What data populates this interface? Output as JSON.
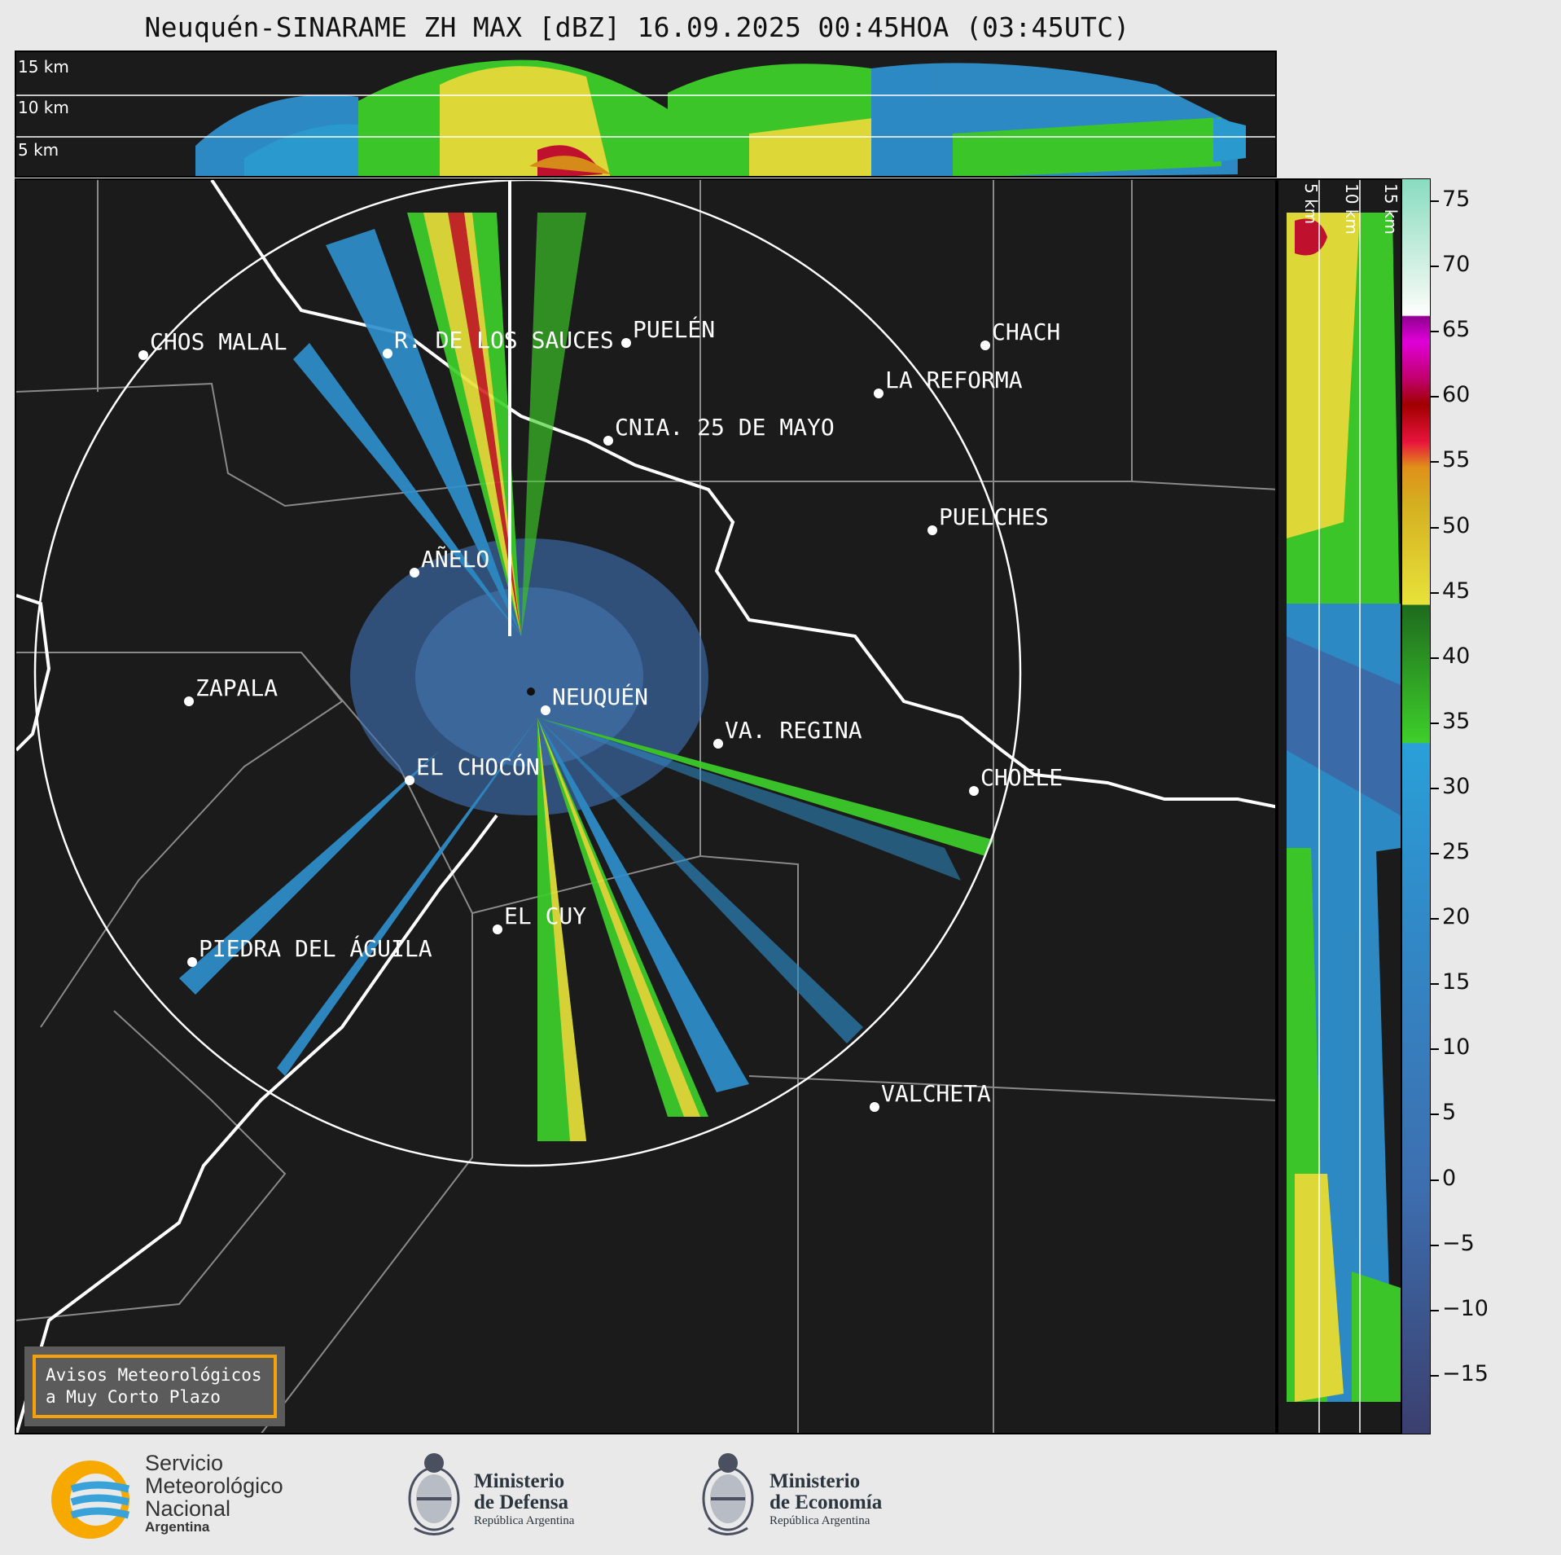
{
  "title": "Neuquén-SINARAME ZH MAX [dBZ] 16.09.2025 00:45HOA (03:45UTC)",
  "top_panel": {
    "altitude_labels": [
      "15 km",
      "10 km",
      "5 km"
    ]
  },
  "side_panel": {
    "altitude_labels": [
      "5 km",
      "10 km",
      "15 km"
    ]
  },
  "map": {
    "towns": [
      {
        "name": "CHOS MALAL"
      },
      {
        "name": "R. DE LOS SAUCES"
      },
      {
        "name": "PUELÉN"
      },
      {
        "name": "CHACH"
      },
      {
        "name": "LA REFORMA"
      },
      {
        "name": "CNIA. 25 DE MAYO"
      },
      {
        "name": "PUELCHES"
      },
      {
        "name": "AÑELO"
      },
      {
        "name": "ZAPALA"
      },
      {
        "name": "NEUQUÉN"
      },
      {
        "name": "VA. REGINA"
      },
      {
        "name": "EL CHOCÓN"
      },
      {
        "name": "CHOELE"
      },
      {
        "name": "EL CUY"
      },
      {
        "name": "PIEDRA DEL ÁGUILA"
      },
      {
        "name": "VALCHETA"
      }
    ],
    "warning_line1": "Avisos Meteorológicos",
    "warning_line2": "a Muy Corto Plazo"
  },
  "colorbar": {
    "unit": "dBZ",
    "ticks": [
      "75",
      "70",
      "65",
      "60",
      "55",
      "50",
      "45",
      "40",
      "35",
      "30",
      "25",
      "20",
      "15",
      "10",
      "5",
      "0",
      "−5",
      "−10",
      "−15"
    ],
    "colors": {
      "low": "#3b3f6e",
      "blue": "#2f8fcc",
      "green": "#3ecf2a",
      "yellow": "#e8e23a",
      "orange": "#e0901a",
      "red": "#c8102e",
      "magenta": "#e000d8",
      "white": "#ffffff",
      "teal": "#88dcc0"
    }
  },
  "footer": {
    "smn_line1": "Servicio",
    "smn_line2": "Meteorológico",
    "smn_line3": "Nacional",
    "smn_line4": "Argentina",
    "defensa_line1": "Ministerio",
    "defensa_line2": "de Defensa",
    "defensa_line3": "República Argentina",
    "economia_line1": "Ministerio",
    "economia_line2": "de Economía",
    "economia_line3": "República Argentina"
  }
}
